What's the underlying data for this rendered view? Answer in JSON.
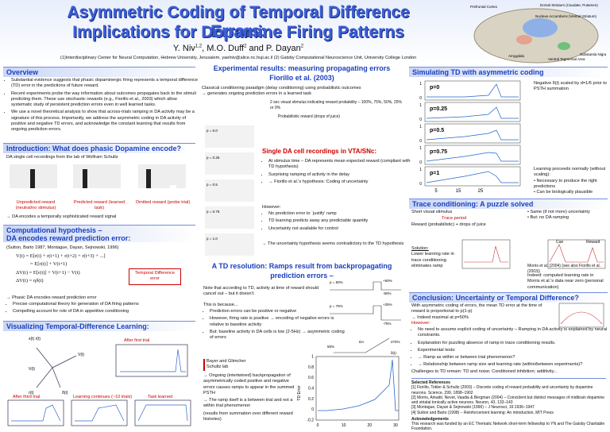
{
  "header": {
    "title": [
      "Asymmetric Coding of Temporal Difference Errors:",
      "Implications for Dopamine Firing Patterns"
    ],
    "authors": [
      "Y. Niv",
      "1,2",
      ", M.O. Duff",
      "2",
      " and P. Dayan",
      "2"
    ],
    "affiliation": "(1)Interdisciplinary Center for Neural Computation, Hebrew University, Jerusalem, yaelniv@alice.nc.huji.ac.il (2) Gatsby Computational Neuroscience Unit, University College London",
    "brain_labels": [
      "Prefrontal Cortex",
      "Dorsal Striatum (Caudate, Putamen)",
      "Nucleus Accumbens (Ventral Striatum)",
      "Amygdala",
      "Ventral Tegmental Area",
      "Substantia Nigra"
    ]
  },
  "overview": {
    "heading": "Overview",
    "bullets": [
      "Substantial evidence suggests that phasic dopaminergic firing represents a temporal difference (TD) error in the predictions of future reward.",
      "Recent experiments probe the way information about outcomes propagates back to the stimuli predicting them. These use stochastic rewards (e.g., Fiorillo et al., 2003) which allow systematic study of persistent prediction errors even in well learned tasks.",
      "We use a novel theoretical analysis to show that across-trials ramping in DA activity may be a signature of this process. Importantly, we address the asymmetric coding in DA activity of positive and negative TD errors, and acknowledge the constant learning that results from ongoing prediction errors."
    ]
  },
  "intro": {
    "heading": "Introduction: What does phasic Dopamine encode?",
    "text": "DA single cell recordings from the lab of Wolfram Schultz",
    "labels": [
      "Unpredicted reward (neutral/no stimulus)",
      "Predicted reward (learned task)",
      "Omitted reward (probe trial)"
    ],
    "conclusion": "→ DA encodes a temporally sophisticated reward signal"
  },
  "hypothesis": {
    "heading": [
      "Computational hypothesis –",
      "DA encodes reward prediction error:"
    ],
    "citation": "(Sutton, Barto 1987, Montague, Dayan, Sejnowski, 1996)",
    "equations": [
      "V(t) = E[r(t) + r(t+1) + r(t+2) + r(t+3) + ...]",
      "= E[r(t)] + V(t+1)",
      "ΔV(t) = E[r(t)] + V(t+1) − V(t)",
      "ΔV(t) = ηδ(t)"
    ],
    "box": "Temporal Difference error",
    "conclusion": "→ Phasic DA encodes reward prediction error",
    "bullets": [
      "Precise computational theory for generation of DA firing patterns",
      "Compelling account for role of DA in appetitive conditioning"
    ]
  },
  "visualizing": {
    "heading": "Visualizing Temporal-Difference Learning:",
    "labels": [
      "After first trial",
      "After third trial",
      "Learning continues (~10 trials)",
      "Task learned"
    ],
    "symbols": [
      "x(t) r(t)",
      "V(t)",
      "V(t)",
      "r(t)",
      "δ(t)"
    ]
  },
  "experiment": {
    "heading": [
      "Experimental results: measuring propagating errors",
      "Fiorillo et al. (2003)"
    ],
    "intro": [
      "Classical conditioning paradigm (delay conditioning) using probabilistic outcomes",
      "→ generates ongoing prediction errors in a learned task"
    ],
    "stimulus": "2 sec visual stimulus indicating reward probability – 100%, 75%, 50%, 25% or 0%",
    "reward": "Probabilistic reward (drops of juice)",
    "subheading": "Single DA cell recordings in VTA/SNc:",
    "bullets": [
      "At stimulus time – DA represents mean expected reward (compliant with TD hypothesis)",
      "Surprising ramping of activity in the delay",
      "→ Fiorillo et al.'s hypothesis: Coding of uncertainty"
    ],
    "however": "However:",
    "bullets2": [
      "No prediction error to `justify' ramp",
      "TD learning predicts away any predictable quantity",
      "Uncertainty not available for control"
    ],
    "conclusion": "→ The uncertainty hypothesis seems contradictory to the TD hypothesis",
    "plabels": [
      "p = 0.0",
      "p = 0.25",
      "p = 0.5",
      "p = 0.75",
      "p = 1.0"
    ]
  },
  "resolution": {
    "heading": [
      "A TD resolution: Ramps result from backpropagating",
      "prediction errors –"
    ],
    "note": "Note that according to TD, activity at time of reward should cancel out – but it doesn't.",
    "because": "This is because...",
    "bullets": [
      "Prediction errors can be positive or negative",
      "However, firing rate is positive → encoding of negative errors is relative to baseline activity",
      "But: baseline activity in DA cells is low (2-5Hz) → asymmetric coding of errors"
    ],
    "plabels": [
      "p = 50%",
      "p = 75%",
      "+50%",
      "-50%",
      "+25%",
      "-75%",
      "DA",
      "270%",
      "55%",
      "δ(t)"
    ],
    "points": [
      "→ Ongoing (intertwined) backpropagation of asymmetrically coded positive and negative errors causes ramps to appear in the summed PSTH",
      "→ The ramp itself is a between trial and not a within trial phenomenon",
      "(results from summation over different reward histories)"
    ],
    "legend": [
      "Bayer and Glimcher",
      "Schultz lab"
    ],
    "ramp_plot": {
      "ylabel": "TD Error",
      "yticks": [
        "1",
        "0.8",
        "0.6",
        "0.4",
        "0.2",
        "0",
        "-0.2"
      ],
      "xticks": [
        "0",
        "10",
        "20",
        "30"
      ]
    }
  },
  "simulation": {
    "heading": "Simulating TD with asymmetric coding",
    "plabels": [
      "p=0",
      "p=0.25",
      "p=0.5",
      "p=0.75",
      "p=1"
    ],
    "yticks": [
      "0",
      "1"
    ],
    "xticks": [
      "5",
      "15",
      "25"
    ],
    "note": "Negative δ(t) scaled by d=1/6 prior to PSTH summation",
    "learning": [
      "Learning proceeds normally (without scaling):",
      "• Necessary to produce the right predictions",
      "• Can be biologically plausible"
    ]
  },
  "trace": {
    "heading": "Trace conditioning: A puzzle solved",
    "stimulus": "Short visual stimulus",
    "period": "Trace period",
    "reward": "Reward (probabilistic) + drops of juice",
    "bullets": [
      "• Same (if not more) uncertainty",
      "• But: no DA ramping"
    ],
    "solution": [
      "Solution:",
      "Lower learning rate in trace conditioning eliminates ramp"
    ],
    "citation": "Morris et al. (2004) (see also Fiorillo et al. (2003))",
    "indeed": "Indeed: computed learning rate in Morris et al.'s data near zero (personal communication)",
    "plot_labels": [
      "Cue",
      "Reward"
    ]
  },
  "conclusion": {
    "heading": "Conclusion: Uncertainty or Temporal Difference?",
    "text": [
      "With asymmetric coding of errors, the mean TD error at the time of reward is proportional to p(1-p)",
      "→ Indeed maximal at p=50%"
    ],
    "however": "However:",
    "bullets": [
      "No need to assume explicit coding of uncertainty – Ramping in DA activity is explained by neural constraints.",
      "Explanation for puzzling absence of ramp in trace conditioning results.",
      "Experimental tests:",
      "→ Ramp as within or between trial phenomenon?",
      "→ Relationship between ramp size and learning rate (within/between experiments)?"
    ],
    "challenges": "Challenges to TD remain: TD and noise; Conditioned inhibition; additivity...",
    "refs_heading": "Selected References",
    "refs": [
      "[1] Fiorillo, Tobler & Schultz (2003) – Discrete coding of reward probability and uncertainty by dopamine neurons. Science, 299, 1898–1902",
      "[2] Morris, Arkadir, Nevet, Vaadia & Bergman (2004) – Coincident but distinct messages of midbrain dopamine and striatal tonically active neurons. Neuron, 43, 133–143",
      "[3] Montague, Dayan & Sejnowski (1996) – J Neurosci, 16:1936–1947",
      "[4] Sutton and Barto (1998) – Reinforcement learning: An introduction, MIT Press"
    ],
    "ack_heading": "Acknowledgements",
    "ack": "This research was funded by an EC Thematic Network short-term fellowship to YN and The Gatsby Charitable Foundation."
  }
}
